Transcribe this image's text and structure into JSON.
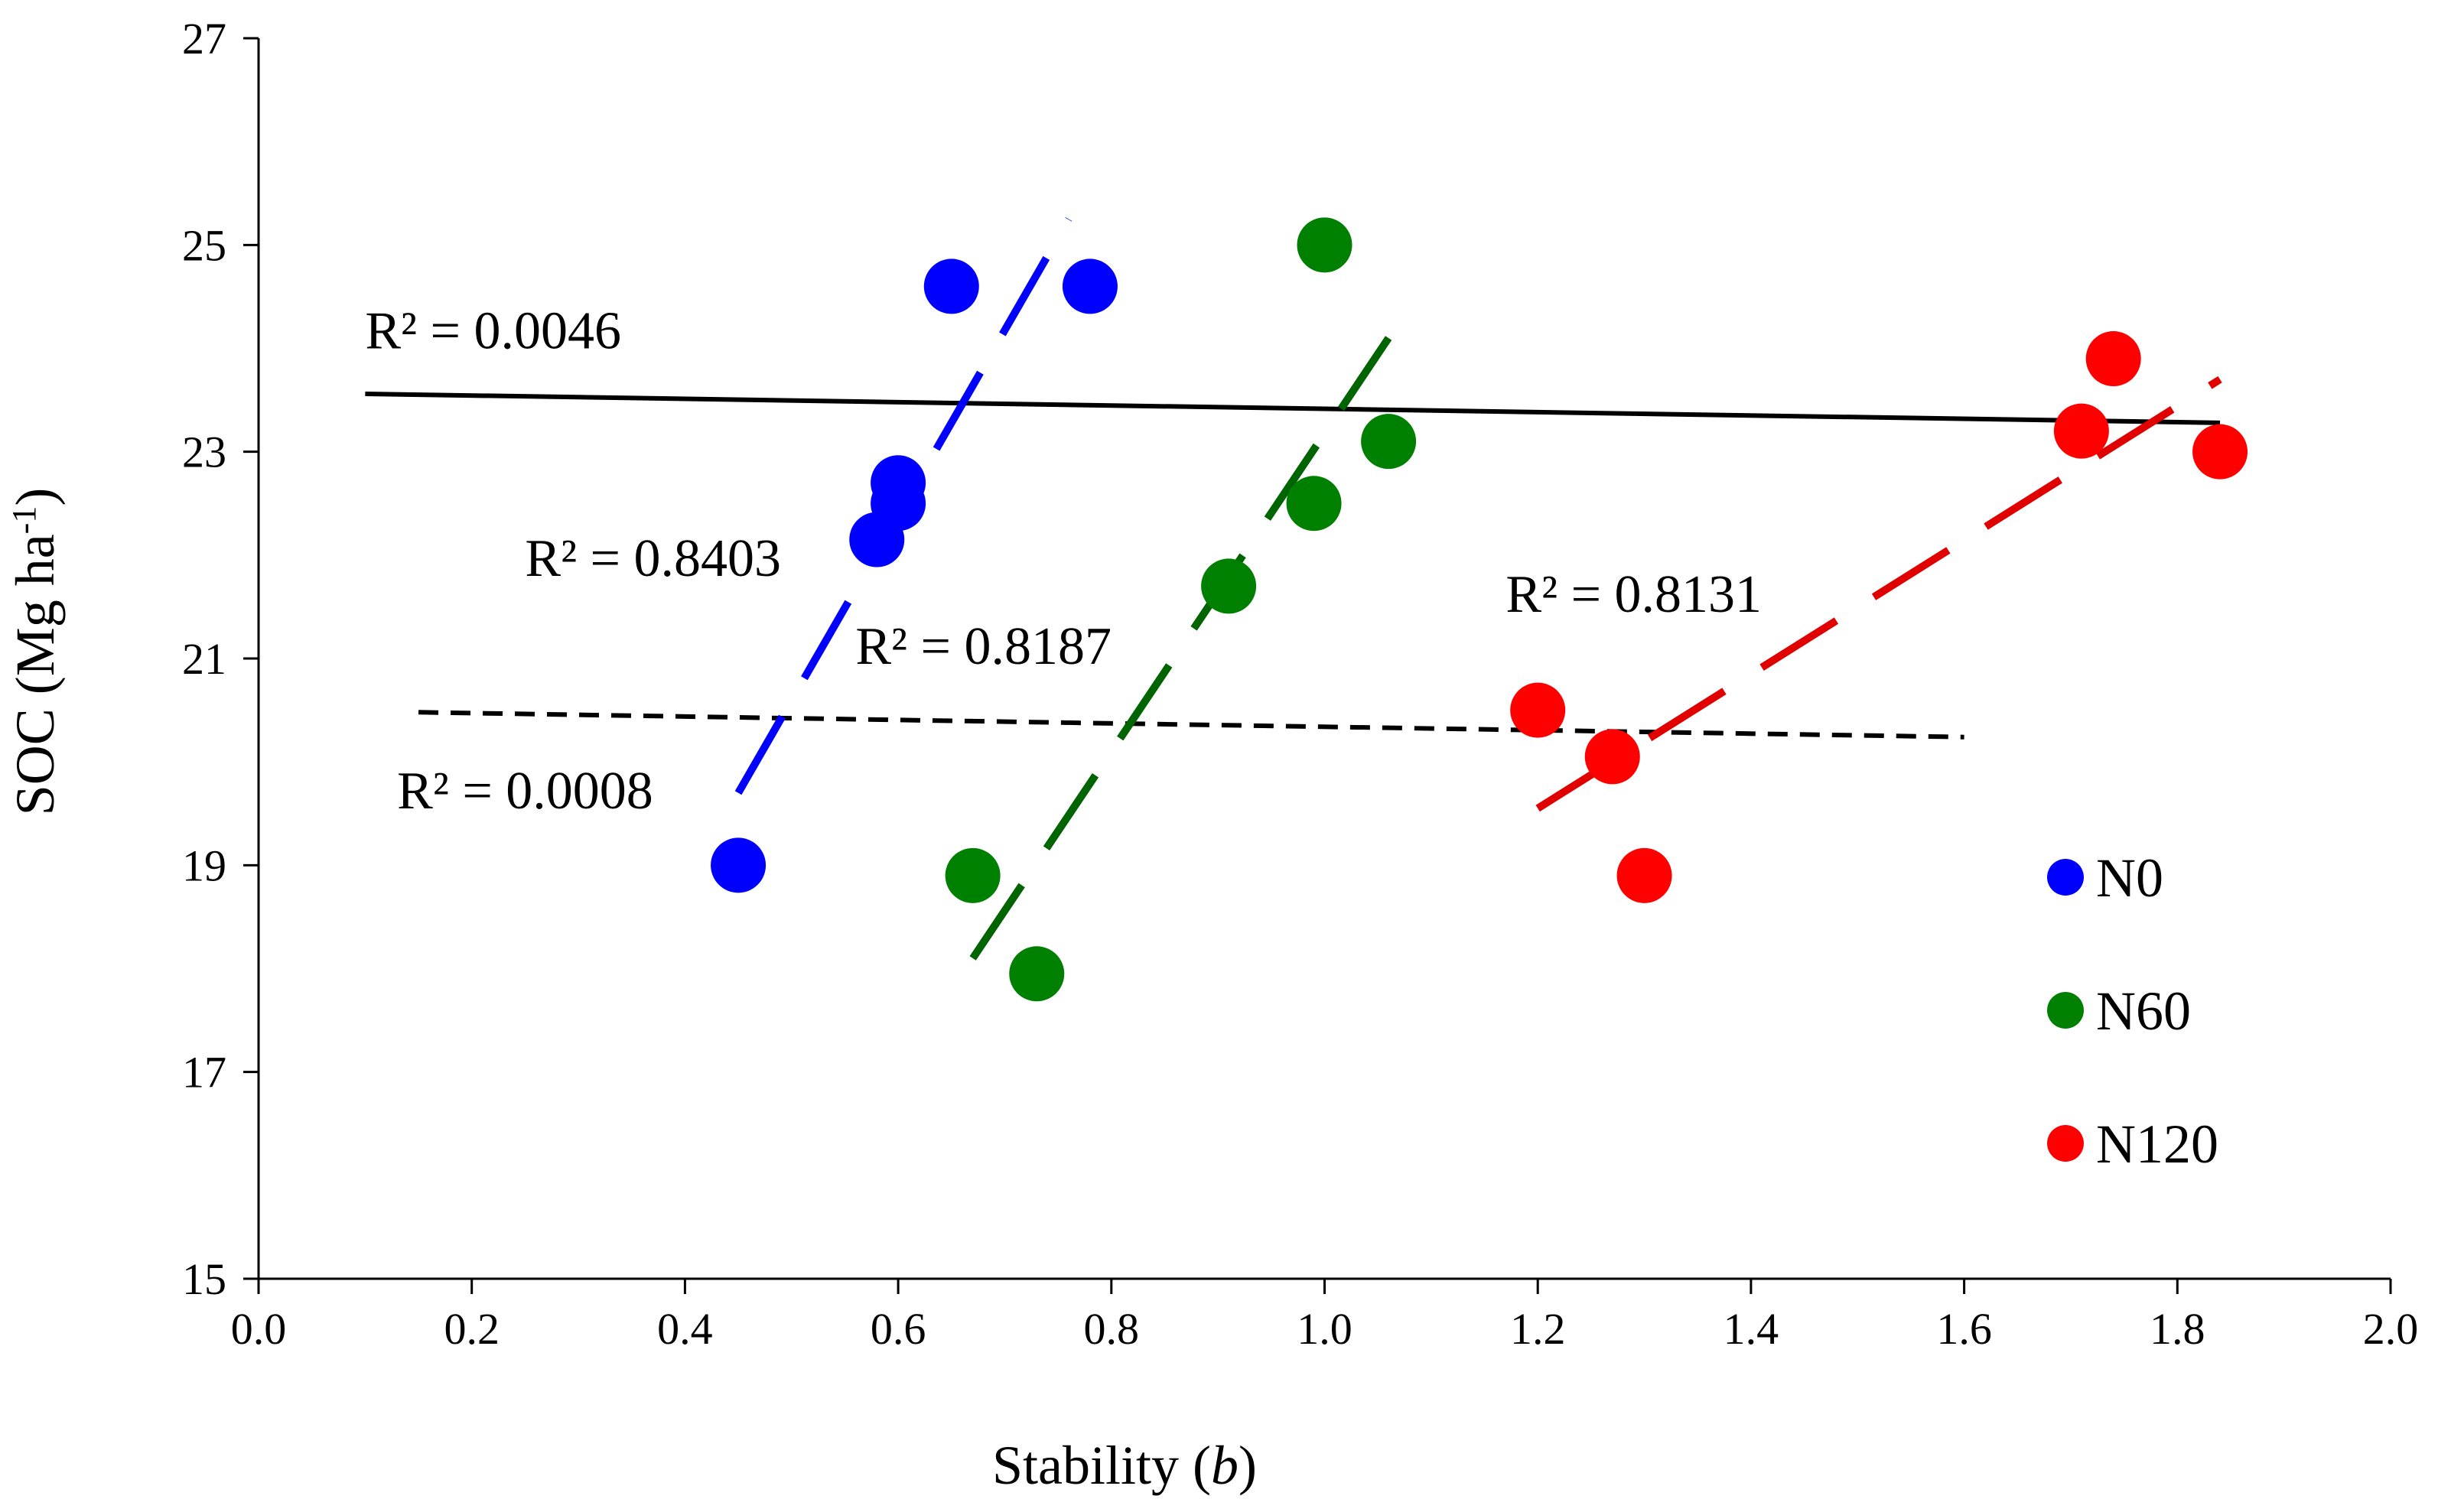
{
  "chart_data": {
    "type": "scatter",
    "xlabel": "Stability (b)",
    "xlabel_main": "Stability (",
    "xlabel_italic": "b",
    "xlabel_close": ")",
    "ylabel": "SOC (Mg ha-1)",
    "ylabel_main": "SOC (Mg ha",
    "ylabel_sup": "-1",
    "ylabel_close": ")",
    "xlim": [
      0.0,
      2.0
    ],
    "ylim": [
      15,
      27
    ],
    "xticks": [
      "0.0",
      "0.2",
      "0.4",
      "0.6",
      "0.8",
      "1.0",
      "1.2",
      "1.4",
      "1.6",
      "1.8",
      "2.0"
    ],
    "yticks": [
      "15",
      "17",
      "19",
      "21",
      "23",
      "25",
      "27"
    ],
    "grid": false,
    "legend_position": "right",
    "series": [
      {
        "name": "N0",
        "color": "#0000ff",
        "trend_color": "#0000ff",
        "points": [
          {
            "x": 0.45,
            "y": 19.0
          },
          {
            "x": 0.58,
            "y": 22.15
          },
          {
            "x": 0.6,
            "y": 22.5
          },
          {
            "x": 0.6,
            "y": 22.7
          },
          {
            "x": 0.65,
            "y": 24.6
          },
          {
            "x": 0.78,
            "y": 24.6
          }
        ],
        "trendline": {
          "x": [
            0.45,
            0.76
          ],
          "y": [
            19.7,
            25.25
          ],
          "style": "long-dash"
        },
        "r2_label": "R² = 0.8403",
        "r2_anchor": {
          "x": 0.25,
          "y": 21.8
        }
      },
      {
        "name": "N60",
        "color": "#008000",
        "trend_color": "#006400",
        "points": [
          {
            "x": 0.67,
            "y": 18.9
          },
          {
            "x": 0.73,
            "y": 17.95
          },
          {
            "x": 0.91,
            "y": 21.7
          },
          {
            "x": 0.99,
            "y": 22.5
          },
          {
            "x": 1.0,
            "y": 25.0
          },
          {
            "x": 1.06,
            "y": 23.1
          }
        ],
        "trendline": {
          "x": [
            0.67,
            1.06
          ],
          "y": [
            18.1,
            24.1
          ],
          "style": "long-dash"
        },
        "r2_label": "R² = 0.8187",
        "r2_anchor": {
          "x": 0.56,
          "y": 20.95
        }
      },
      {
        "name": "N120",
        "color": "#ff0000",
        "trend_color": "#e00000",
        "points": [
          {
            "x": 1.2,
            "y": 20.5
          },
          {
            "x": 1.27,
            "y": 20.05
          },
          {
            "x": 1.3,
            "y": 18.9
          },
          {
            "x": 1.71,
            "y": 23.2
          },
          {
            "x": 1.74,
            "y": 23.9
          },
          {
            "x": 1.84,
            "y": 23.0
          }
        ],
        "trendline": {
          "x": [
            1.2,
            1.84
          ],
          "y": [
            19.55,
            23.7
          ],
          "style": "long-dash"
        },
        "r2_label": "R² = 0.8131",
        "r2_anchor": {
          "x": 1.17,
          "y": 21.45
        }
      }
    ],
    "overall_trendlines": [
      {
        "name": "overall-solid",
        "x": [
          0.1,
          1.84
        ],
        "y": [
          23.56,
          23.28
        ],
        "style": "solid",
        "color": "#000000",
        "r2_label": "R² = 0.0046",
        "r2_anchor": {
          "x": 0.1,
          "y": 24.0
        }
      },
      {
        "name": "overall-dashed",
        "x": [
          0.15,
          1.6
        ],
        "y": [
          20.48,
          20.24
        ],
        "style": "short-dash",
        "color": "#000000",
        "r2_label": "R² = 0.0008",
        "r2_anchor": {
          "x": 0.13,
          "y": 19.55
        }
      }
    ]
  }
}
